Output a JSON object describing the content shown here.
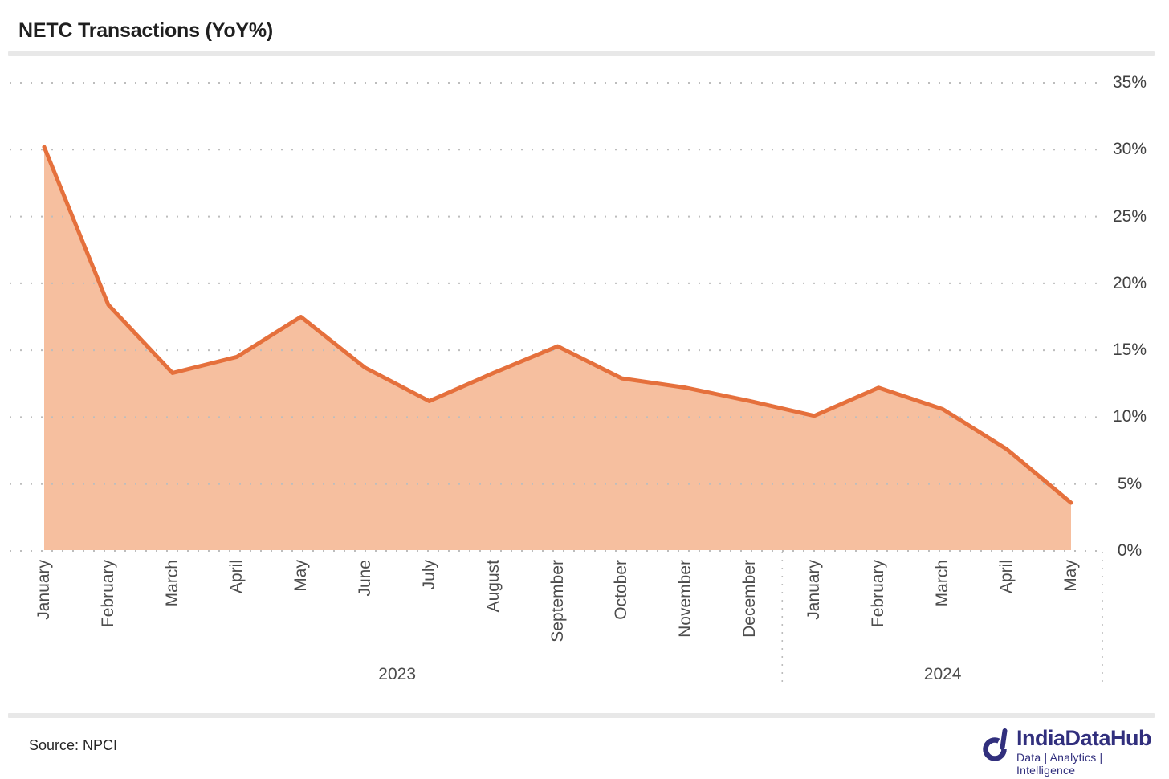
{
  "header": {
    "title": "NETC Transactions (YoY%)"
  },
  "chart_data": {
    "type": "area",
    "title": "NETC Transactions (YoY%)",
    "categories": [
      "January",
      "February",
      "March",
      "April",
      "May",
      "June",
      "July",
      "August",
      "September",
      "October",
      "November",
      "December",
      "January",
      "February",
      "March",
      "April",
      "May"
    ],
    "year_groups": [
      {
        "label": "2023",
        "from": 0,
        "to": 11
      },
      {
        "label": "2024",
        "from": 12,
        "to": 16
      }
    ],
    "values": [
      30.2,
      18.4,
      13.3,
      14.5,
      17.5,
      13.7,
      11.2,
      13.3,
      15.3,
      12.9,
      12.2,
      11.2,
      10.1,
      12.2,
      10.6,
      7.6,
      3.6
    ],
    "ylim": [
      0,
      35
    ],
    "yticks": [
      0,
      5,
      10,
      15,
      20,
      25,
      30,
      35
    ],
    "ytick_suffix": "%",
    "grid": "dotted-horizontal",
    "legend": "none",
    "colors": {
      "line": "#E5703C",
      "fill": "#F6BF9F",
      "grid_dot": "#BDBDBD",
      "month_text": "#4D4D4D",
      "tick_text": "#404040"
    }
  },
  "footer": {
    "source": "Source: NPCI",
    "brand": {
      "name": "IndiaDataHub",
      "tagline": "Data | Analytics | Intelligence",
      "color": "#312F7D",
      "logo_icon": "indiadatahub-d-icon"
    }
  }
}
